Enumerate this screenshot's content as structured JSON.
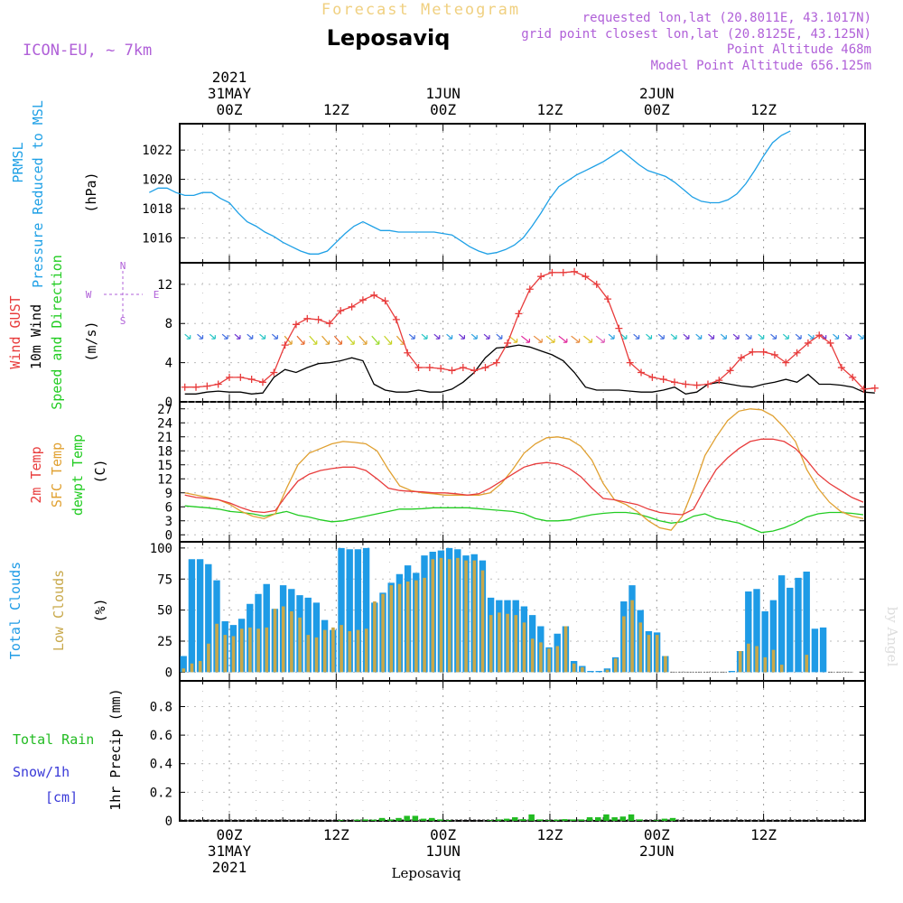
{
  "header": {
    "subtitle": "Forecast Meteogram",
    "location": "Leposaviq",
    "model": "ICON-EU, ~ 7km",
    "requested": "requested lon,lat (20.8011E, 43.1017N)",
    "grid_point": "grid point closest lon,lat (20.8125E, 43.125N)",
    "point_altitude": "Point Altitude 468m",
    "model_altitude": "Model Point Altitude 656.125m",
    "watermark": "by Angel",
    "bottom_location": "Leposaviq"
  },
  "time_axis": {
    "top_labels": [
      {
        "hour": 0,
        "lines": [
          "2021",
          "31MAY",
          "00Z"
        ]
      },
      {
        "hour": 12,
        "lines": [
          "12Z"
        ]
      },
      {
        "hour": 24,
        "lines": [
          "1JUN",
          "00Z"
        ]
      },
      {
        "hour": 36,
        "lines": [
          "12Z"
        ]
      },
      {
        "hour": 48,
        "lines": [
          "2JUN",
          "00Z"
        ]
      },
      {
        "hour": 60,
        "lines": [
          "12Z"
        ]
      }
    ],
    "bottom_labels": [
      {
        "hour": 0,
        "lines": [
          "00Z",
          "31MAY",
          "2021"
        ]
      },
      {
        "hour": 12,
        "lines": [
          "12Z"
        ]
      },
      {
        "hour": 24,
        "lines": [
          "00Z",
          "1JUN"
        ]
      },
      {
        "hour": 36,
        "lines": [
          "12Z"
        ]
      },
      {
        "hour": 48,
        "lines": [
          "00Z",
          "2JUN"
        ]
      },
      {
        "hour": 60,
        "lines": [
          "12Z"
        ]
      }
    ]
  },
  "panels": {
    "pressure": {
      "label_a": "PRMSL",
      "label_b": "Pressure Reduced to MSL",
      "unit": "(hPa)",
      "ticks": [
        "1016",
        "1018",
        "1020",
        "1022"
      ]
    },
    "wind": {
      "label_gust": "Wind GUST",
      "label_wind": "10m Wind",
      "label_dir": "Speed and Direction",
      "unit": "(m/s)",
      "ticks": [
        "0",
        "4",
        "8",
        "12"
      ],
      "compass": {
        "n": "N",
        "s": "S",
        "w": "W",
        "e": "E"
      }
    },
    "temp": {
      "label_t2m": "2m Temp",
      "label_sfc": "SFC Temp",
      "label_dew": "dewpt Temp",
      "unit": "(C)",
      "ticks": [
        "0",
        "3",
        "6",
        "9",
        "12",
        "15",
        "18",
        "21",
        "24",
        "27"
      ]
    },
    "clouds": {
      "label_total": "Total Clouds",
      "label_low": "Low Clouds",
      "unit": "(%)",
      "ticks": [
        "0",
        "25",
        "50",
        "75",
        "100"
      ]
    },
    "precip": {
      "label_rain": "Total  Rain",
      "label_snow": "Snow/1h",
      "label_cm": "[cm]",
      "axis_title": "1hr Precip (mm)",
      "ticks": [
        "0",
        "0.2",
        "0.4",
        "0.6",
        "0.8"
      ]
    }
  },
  "colors": {
    "pressure": "#1ea0e6",
    "gust": "#e83c3c",
    "wind": "#000000",
    "t2m": "#e83c3c",
    "sfc": "#e0a030",
    "dew": "#22cc22",
    "total_clouds": "#1e9be6",
    "low_clouds": "#c8a84a",
    "rain": "#22bb22",
    "snow": "#3a3ad8",
    "model": "#b060d8",
    "compass": "#b060d8",
    "subtitle": "#f0d080"
  },
  "chart_data": [
    {
      "type": "line",
      "title": "PRMSL Pressure Reduced to MSL",
      "ylabel": "(hPa)",
      "ylim": [
        1014.3,
        1023.8
      ],
      "grid": true,
      "x_hours": [
        -9,
        -8,
        -7,
        -6,
        -5,
        -4,
        -3,
        -2,
        -1,
        0,
        1,
        2,
        3,
        4,
        5,
        6,
        7,
        8,
        9,
        10,
        11,
        12,
        13,
        14,
        15,
        16,
        17,
        18,
        19,
        20,
        21,
        22,
        23,
        24,
        25,
        26,
        27,
        28,
        29,
        30,
        31,
        32,
        33,
        34,
        35,
        36,
        37,
        38,
        39,
        40,
        41,
        42,
        43,
        44,
        45,
        46,
        47,
        48,
        49,
        50,
        51,
        52,
        53,
        54,
        55,
        56,
        57,
        58,
        59,
        60,
        61,
        62,
        63,
        64,
        65,
        66,
        67,
        68,
        69,
        70,
        71,
        72,
        73,
        74,
        75,
        76,
        77
      ],
      "series": [
        {
          "name": "PRMSL",
          "values": [
            1019.1,
            1019.4,
            1019.4,
            1019.1,
            1018.9,
            1018.9,
            1019.1,
            1019.1,
            1018.7,
            1018.4,
            1017.7,
            1017.1,
            1016.8,
            1016.4,
            1016.1,
            1015.7,
            1015.4,
            1015.1,
            1014.9,
            1014.9,
            1015.1,
            1015.7,
            1016.3,
            1016.8,
            1017.1,
            1016.8,
            1016.5,
            1016.5,
            1016.4,
            1016.4,
            1016.4,
            1016.4,
            1016.4,
            1016.3,
            1016.2,
            1015.8,
            1015.4,
            1015.1,
            1014.9,
            1015.0,
            1015.2,
            1015.5,
            1016.0,
            1016.8,
            1017.7,
            1018.7,
            1019.5,
            1019.9,
            1020.3,
            1020.6,
            1020.9,
            1021.2,
            1021.6,
            1022.0,
            1021.5,
            1021.0,
            1020.6,
            1020.4,
            1020.2,
            1019.8,
            1019.3,
            1018.8,
            1018.5,
            1018.4,
            1018.4,
            1018.6,
            1019.0,
            1019.7,
            1020.6,
            1021.6,
            1022.5,
            1023.0,
            1023.3
          ]
        }
      ]
    },
    {
      "type": "line",
      "title": "Wind GUST / 10m Wind Speed and Direction",
      "ylabel": "(m/s)",
      "ylim": [
        0,
        14.2
      ],
      "grid": true,
      "series": [
        {
          "name": "Wind GUST",
          "values": [
            1.5,
            1.5,
            1.6,
            1.8,
            2.5,
            2.5,
            2.3,
            2.0,
            3.0,
            5.8,
            7.9,
            8.5,
            8.4,
            8.0,
            9.3,
            9.7,
            10.4,
            10.9,
            10.3,
            8.4,
            5.0,
            3.5,
            3.5,
            3.4,
            3.2,
            3.5,
            3.2,
            3.5,
            4.0,
            6.0,
            9.0,
            11.5,
            12.8,
            13.2,
            13.2,
            13.3,
            12.8,
            12.0,
            10.5,
            7.5,
            4.0,
            3.0,
            2.5,
            2.3,
            2.0,
            1.8,
            1.7,
            1.8,
            2.2,
            3.2,
            4.5,
            5.1,
            5.1,
            4.8,
            4.0,
            5.0,
            6.0,
            6.8,
            6.0,
            3.5,
            2.5,
            1.3,
            1.4
          ]
        },
        {
          "name": "10m Wind",
          "values": [
            0.8,
            0.8,
            1.0,
            1.1,
            1.0,
            1.0,
            0.8,
            0.9,
            2.5,
            3.3,
            3.0,
            3.5,
            3.9,
            4.0,
            4.2,
            4.5,
            4.2,
            1.8,
            1.2,
            1.0,
            1.0,
            1.2,
            1.0,
            1.0,
            1.3,
            2.0,
            3.0,
            4.5,
            5.5,
            5.6,
            5.8,
            5.6,
            5.2,
            4.8,
            4.2,
            3.0,
            1.5,
            1.2,
            1.2,
            1.2,
            1.1,
            1.0,
            1.0,
            1.2,
            1.5,
            0.8,
            1.0,
            1.8,
            2.0,
            1.8,
            1.6,
            1.5,
            1.8,
            2.0,
            2.3,
            2.0,
            2.8,
            1.8,
            1.8,
            1.7,
            1.5,
            1.0,
            0.9
          ]
        }
      ]
    },
    {
      "type": "line",
      "title": "2m Temp / SFC Temp / dewpt Temp",
      "ylabel": "(C)",
      "ylim": [
        -1.5,
        28.5
      ],
      "grid": true,
      "series": [
        {
          "name": "2m Temp",
          "values": [
            8.5,
            8.0,
            7.8,
            7.5,
            6.8,
            5.8,
            5.0,
            4.8,
            5.2,
            8.5,
            11.5,
            13.0,
            13.8,
            14.2,
            14.5,
            14.5,
            13.8,
            12.0,
            10.0,
            9.5,
            9.3,
            9.2,
            9.0,
            9.0,
            8.8,
            8.5,
            8.8,
            10.0,
            11.5,
            13.0,
            14.5,
            15.2,
            15.5,
            15.2,
            14.2,
            12.5,
            10.0,
            7.8,
            7.5,
            7.0,
            6.5,
            5.5,
            4.8,
            4.5,
            4.3,
            5.5,
            10.0,
            14.0,
            16.5,
            18.5,
            20.0,
            20.5,
            20.5,
            20.0,
            18.5,
            16.0,
            13.0,
            11.0,
            9.5,
            8.0,
            7.0
          ]
        },
        {
          "name": "SFC Temp",
          "values": [
            9.0,
            8.5,
            8.0,
            7.5,
            6.5,
            5.0,
            4.0,
            3.5,
            4.5,
            10.0,
            15.0,
            17.5,
            18.5,
            19.5,
            20.0,
            19.8,
            19.5,
            18.0,
            14.0,
            10.5,
            9.5,
            9.0,
            8.8,
            8.5,
            8.5,
            8.5,
            8.5,
            9.0,
            11.0,
            14.0,
            17.5,
            19.5,
            20.8,
            21.0,
            20.5,
            19.0,
            16.0,
            11.0,
            7.5,
            6.5,
            5.0,
            3.0,
            1.5,
            1.0,
            4.0,
            10.0,
            17.0,
            21.0,
            24.5,
            26.5,
            27.0,
            26.8,
            25.5,
            23.0,
            20.0,
            14.0,
            10.0,
            7.0,
            5.0,
            4.0,
            3.5
          ]
        },
        {
          "name": "dewpt Temp",
          "values": [
            6.2,
            6.0,
            5.8,
            5.5,
            5.0,
            4.8,
            4.5,
            4.0,
            4.5,
            5.0,
            4.2,
            3.8,
            3.2,
            2.8,
            3.0,
            3.5,
            4.0,
            4.5,
            5.0,
            5.5,
            5.5,
            5.6,
            5.8,
            5.8,
            5.8,
            5.8,
            5.6,
            5.4,
            5.2,
            5.0,
            4.5,
            3.5,
            3.0,
            3.0,
            3.2,
            3.8,
            4.3,
            4.6,
            4.8,
            4.8,
            4.5,
            3.8,
            3.0,
            2.5,
            2.8,
            4.0,
            4.5,
            3.5,
            3.0,
            2.5,
            1.5,
            0.5,
            0.8,
            1.5,
            2.5,
            3.8,
            4.5,
            4.8,
            4.8,
            4.6,
            4.3
          ]
        }
      ]
    },
    {
      "type": "bar",
      "title": "Total Clouds / Low Clouds",
      "ylabel": "(%)",
      "ylim": [
        -7,
        105
      ],
      "grid": true,
      "series": [
        {
          "name": "Total Clouds",
          "values": [
            13,
            91,
            91,
            87,
            74,
            41,
            38,
            43,
            55,
            63,
            71,
            51,
            70,
            67,
            62,
            60,
            56,
            42,
            34,
            100,
            99,
            99,
            100,
            56,
            64,
            72,
            79,
            86,
            80,
            94,
            97,
            98,
            100,
            99,
            94,
            95,
            90,
            60,
            58,
            58,
            58,
            53,
            46,
            37,
            20,
            31,
            37,
            9,
            5,
            1,
            1,
            3,
            12,
            57,
            70,
            50,
            33,
            32,
            13,
            0,
            0,
            0,
            0,
            0,
            0,
            0,
            1,
            17,
            65,
            67,
            49,
            58,
            78,
            68,
            76,
            81,
            35,
            36,
            0,
            0,
            0
          ]
        },
        {
          "name": "Low Clouds",
          "values": [
            3,
            7,
            9,
            23,
            39,
            30,
            29,
            35,
            36,
            35,
            36,
            51,
            53,
            49,
            44,
            30,
            28,
            34,
            36,
            38,
            33,
            34,
            35,
            57,
            63,
            70,
            71,
            73,
            74,
            76,
            91,
            92,
            91,
            92,
            90,
            90,
            82,
            46,
            48,
            47,
            46,
            40,
            27,
            24,
            19,
            21,
            37,
            7,
            4,
            0,
            0,
            2,
            11,
            45,
            58,
            40,
            30,
            30,
            13,
            0,
            0,
            0,
            0,
            0,
            0,
            0,
            0,
            17,
            23,
            21,
            12,
            18,
            6,
            0,
            0,
            14,
            0,
            0,
            0,
            0,
            0
          ]
        }
      ]
    },
    {
      "type": "bar",
      "title": "Total Rain / Snow/1h",
      "ylabel": "1hr Precip (mm)",
      "ylim": [
        0,
        0.98
      ],
      "grid": true,
      "series": [
        {
          "name": "Total Rain",
          "values": [
            0,
            0,
            0,
            0,
            0,
            0,
            0,
            0,
            0,
            0,
            0,
            0,
            0,
            0,
            0,
            0,
            0,
            0,
            0,
            0.005,
            0,
            0.008,
            0.01,
            0.008,
            0.02,
            0.01,
            0.02,
            0.035,
            0.035,
            0.015,
            0.02,
            0.01,
            0.005,
            0,
            0,
            0,
            0,
            0.005,
            0.01,
            0.015,
            0.025,
            0.012,
            0.045,
            0.01,
            0.005,
            0.008,
            0.012,
            0.01,
            0.01,
            0.025,
            0.025,
            0.045,
            0.025,
            0.03,
            0.045,
            0.01,
            0,
            0.005,
            0.015,
            0.02,
            0,
            0,
            0,
            0,
            0,
            0,
            0,
            0,
            0,
            0,
            0,
            0,
            0,
            0,
            0,
            0,
            0,
            0,
            0,
            0,
            0
          ]
        }
      ]
    }
  ]
}
